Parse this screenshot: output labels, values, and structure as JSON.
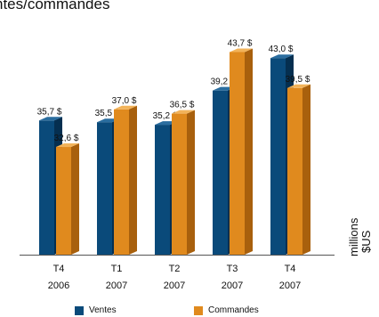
{
  "title": "ntes/commandes",
  "unit_label": [
    "millions",
    "$US"
  ],
  "colors": {
    "ventes_front": "#0a4a7a",
    "ventes_side": "#052f50",
    "ventes_top": "#2a6d9f",
    "commandes_front": "#e08a1e",
    "commandes_side": "#a8600d",
    "commandes_top": "#f2b35a",
    "axis": "#555555"
  },
  "chart_data": {
    "type": "bar",
    "title": "ntes/commandes",
    "categories": [
      {
        "line1": "T4",
        "line2": "2006"
      },
      {
        "line1": "T1",
        "line2": "2007"
      },
      {
        "line1": "T2",
        "line2": "2007"
      },
      {
        "line1": "T3",
        "line2": "2007"
      },
      {
        "line1": "T4",
        "line2": "2007"
      }
    ],
    "series": [
      {
        "name": "Ventes",
        "values": [
          35.7,
          35.5,
          35.2,
          39.2,
          43.0
        ],
        "labels": [
          "35,7 $",
          "35,5 $",
          "35,2 $",
          "39,2 $",
          "43,0 $"
        ]
      },
      {
        "name": "Commandes",
        "values": [
          32.6,
          37.0,
          36.5,
          43.7,
          39.5
        ],
        "labels": [
          "32,6 $",
          "37,0 $",
          "36,5 $",
          "43,7 $",
          "39,5 $"
        ]
      }
    ],
    "ylim": [
      20,
      45
    ],
    "grid": false,
    "legend_position": "bottom"
  }
}
